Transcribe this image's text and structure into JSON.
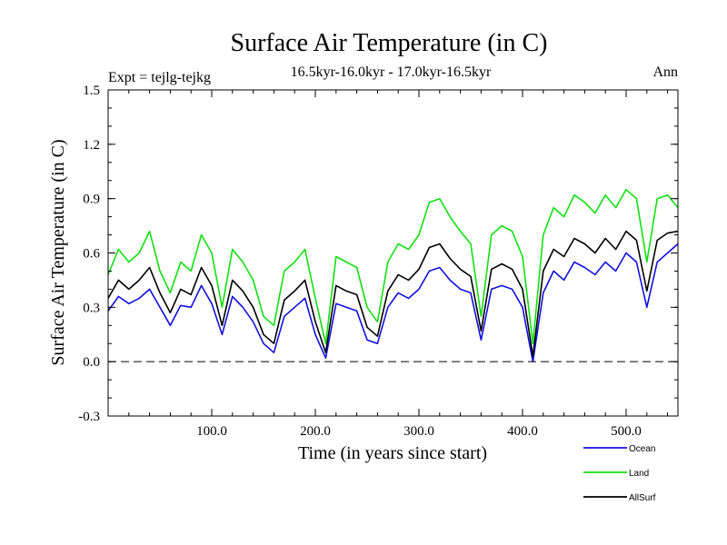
{
  "chart_data": {
    "type": "line",
    "title": "Surface Air Temperature (in C)",
    "subtitle": "16.5kyr-16.0kyr - 17.0kyr-16.5kyr",
    "left_label": "Expt = tejlg-tejkg",
    "right_label": "Ann",
    "xlabel": "Time (in years since start)",
    "ylabel": "Surface Air Temperature (in C)",
    "xlim": [
      0,
      550
    ],
    "ylim": [
      -0.3,
      1.5
    ],
    "xticks": [
      100,
      200,
      300,
      400,
      500
    ],
    "xtick_labels": [
      "100.0",
      "200.0",
      "300.0",
      "400.0",
      "500.0"
    ],
    "yticks": [
      -0.3,
      0.0,
      0.3,
      0.6,
      0.9,
      1.2,
      1.5
    ],
    "ytick_labels": [
      "-0.3",
      "0.0",
      "0.3",
      "0.6",
      "0.9",
      "1.2",
      "1.5"
    ],
    "reference_line": 0.0,
    "x": [
      0,
      10,
      20,
      30,
      40,
      50,
      60,
      70,
      80,
      90,
      100,
      110,
      120,
      130,
      140,
      150,
      160,
      170,
      180,
      190,
      200,
      210,
      220,
      230,
      240,
      250,
      260,
      270,
      280,
      290,
      300,
      310,
      320,
      330,
      340,
      350,
      360,
      370,
      380,
      390,
      400,
      410,
      420,
      430,
      440,
      450,
      460,
      470,
      480,
      490,
      500,
      510,
      520,
      530,
      540,
      550
    ],
    "series": [
      {
        "name": "Ocean",
        "color": "#1010e0",
        "values": [
          0.28,
          0.36,
          0.32,
          0.35,
          0.4,
          0.3,
          0.2,
          0.31,
          0.3,
          0.42,
          0.32,
          0.15,
          0.36,
          0.3,
          0.22,
          0.1,
          0.05,
          0.25,
          0.3,
          0.35,
          0.15,
          0.02,
          0.32,
          0.3,
          0.28,
          0.12,
          0.1,
          0.3,
          0.38,
          0.35,
          0.4,
          0.5,
          0.52,
          0.45,
          0.4,
          0.38,
          0.12,
          0.4,
          0.42,
          0.4,
          0.3,
          0.0,
          0.38,
          0.5,
          0.45,
          0.55,
          0.52,
          0.48,
          0.55,
          0.5,
          0.6,
          0.55,
          0.3,
          0.55,
          0.6,
          0.65
        ]
      },
      {
        "name": "Land",
        "color": "#10e010",
        "values": [
          0.48,
          0.62,
          0.55,
          0.6,
          0.72,
          0.5,
          0.38,
          0.55,
          0.5,
          0.7,
          0.6,
          0.3,
          0.62,
          0.55,
          0.45,
          0.25,
          0.2,
          0.5,
          0.55,
          0.62,
          0.35,
          0.1,
          0.58,
          0.55,
          0.52,
          0.3,
          0.22,
          0.55,
          0.65,
          0.62,
          0.7,
          0.88,
          0.9,
          0.8,
          0.72,
          0.65,
          0.25,
          0.7,
          0.75,
          0.72,
          0.58,
          0.1,
          0.7,
          0.85,
          0.8,
          0.92,
          0.88,
          0.82,
          0.92,
          0.85,
          0.95,
          0.9,
          0.55,
          0.9,
          0.92,
          0.85
        ]
      },
      {
        "name": "AllSurf",
        "color": "#000000",
        "values": [
          0.35,
          0.45,
          0.4,
          0.45,
          0.52,
          0.38,
          0.27,
          0.4,
          0.37,
          0.52,
          0.42,
          0.2,
          0.45,
          0.39,
          0.3,
          0.15,
          0.1,
          0.34,
          0.39,
          0.45,
          0.22,
          0.05,
          0.42,
          0.39,
          0.37,
          0.19,
          0.14,
          0.39,
          0.48,
          0.45,
          0.51,
          0.63,
          0.65,
          0.57,
          0.51,
          0.47,
          0.17,
          0.51,
          0.54,
          0.51,
          0.4,
          0.03,
          0.5,
          0.62,
          0.58,
          0.68,
          0.65,
          0.6,
          0.68,
          0.62,
          0.72,
          0.67,
          0.39,
          0.67,
          0.71,
          0.72
        ]
      }
    ],
    "legend_position": "bottom-right",
    "grid": false
  }
}
